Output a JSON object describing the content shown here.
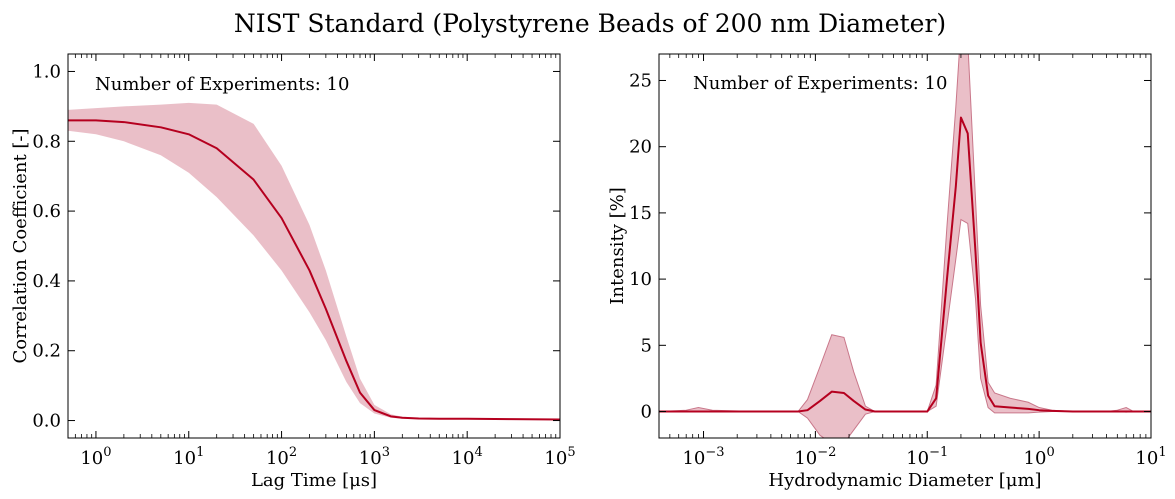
{
  "figure": {
    "title": "NIST Standard (Polystyrene Beads of 200 nm Diameter)"
  },
  "colors": {
    "line": "#b5001f",
    "band": "#e3a9b6",
    "axes": "#000000"
  },
  "chart_data": [
    {
      "type": "line",
      "xscale": "log",
      "xlabel": "Lag Time [μs]",
      "ylabel": "Correlation Coefficient [-]",
      "annotation": "Number of Experiments: 10",
      "xlim": [
        0.5,
        100000
      ],
      "ylim": [
        -0.05,
        1.05
      ],
      "xticks": [
        {
          "value": 1,
          "base": "10",
          "exp": "0"
        },
        {
          "value": 10,
          "base": "10",
          "exp": "1"
        },
        {
          "value": 100,
          "base": "10",
          "exp": "2"
        },
        {
          "value": 1000,
          "base": "10",
          "exp": "3"
        },
        {
          "value": 10000,
          "base": "10",
          "exp": "4"
        },
        {
          "value": 100000,
          "base": "10",
          "exp": "5"
        }
      ],
      "yticks": [
        {
          "value": 0.0,
          "label": "0.0"
        },
        {
          "value": 0.2,
          "label": "0.2"
        },
        {
          "value": 0.4,
          "label": "0.4"
        },
        {
          "value": 0.6,
          "label": "0.6"
        },
        {
          "value": 0.8,
          "label": "0.8"
        },
        {
          "value": 1.0,
          "label": "1.0"
        }
      ],
      "series": [
        {
          "x": [
            0.5,
            1,
            2,
            5,
            10,
            20,
            50,
            100,
            200,
            300,
            500,
            700,
            1000,
            1500,
            2000,
            3000,
            5000,
            10000,
            30000,
            100000
          ],
          "mean": [
            0.86,
            0.86,
            0.855,
            0.84,
            0.82,
            0.78,
            0.69,
            0.58,
            0.43,
            0.32,
            0.17,
            0.08,
            0.03,
            0.012,
            0.008,
            0.006,
            0.005,
            0.005,
            0.004,
            0.003
          ],
          "lower": [
            0.83,
            0.82,
            0.8,
            0.76,
            0.71,
            0.64,
            0.53,
            0.43,
            0.31,
            0.23,
            0.11,
            0.05,
            0.02,
            0.008,
            0.005,
            0.004,
            0.003,
            0.003,
            0.002,
            0.001
          ],
          "upper": [
            0.89,
            0.895,
            0.9,
            0.905,
            0.91,
            0.905,
            0.85,
            0.73,
            0.56,
            0.43,
            0.24,
            0.12,
            0.045,
            0.018,
            0.011,
            0.008,
            0.007,
            0.007,
            0.006,
            0.005
          ]
        }
      ]
    },
    {
      "type": "line",
      "xscale": "log",
      "xlabel": "Hydrodynamic Diameter [μm]",
      "ylabel": "Intensity [%]",
      "annotation": "Number of Experiments: 10",
      "xlim": [
        0.0004,
        10
      ],
      "ylim": [
        -2,
        27
      ],
      "xticks": [
        {
          "value": 0.001,
          "base": "10",
          "exp": "−3"
        },
        {
          "value": 0.01,
          "base": "10",
          "exp": "−2"
        },
        {
          "value": 0.1,
          "base": "10",
          "exp": "−1"
        },
        {
          "value": 1,
          "base": "10",
          "exp": "0"
        },
        {
          "value": 10,
          "base": "10",
          "exp": "1"
        }
      ],
      "yticks": [
        {
          "value": 0,
          "label": "0"
        },
        {
          "value": 5,
          "label": "5"
        },
        {
          "value": 10,
          "label": "10"
        },
        {
          "value": 15,
          "label": "15"
        },
        {
          "value": 20,
          "label": "20"
        },
        {
          "value": 25,
          "label": "25"
        }
      ],
      "series": [
        {
          "x": [
            0.0004,
            0.0007,
            0.0009,
            0.0012,
            0.003,
            0.007,
            0.0085,
            0.011,
            0.014,
            0.018,
            0.022,
            0.028,
            0.034,
            0.06,
            0.1,
            0.12,
            0.15,
            0.18,
            0.2,
            0.23,
            0.27,
            0.3,
            0.35,
            0.4,
            0.55,
            0.8,
            1.0,
            1.3,
            2,
            4,
            5,
            6,
            7,
            10
          ],
          "mean": [
            0,
            0,
            0,
            0,
            0,
            0,
            0.1,
            0.8,
            1.5,
            1.4,
            0.8,
            0.15,
            0,
            0,
            0,
            1.0,
            10,
            17,
            22.2,
            21,
            12,
            5.2,
            1.2,
            0.4,
            0.3,
            0.2,
            0.1,
            0.05,
            0,
            0,
            0,
            0,
            0,
            0
          ],
          "lower": [
            0,
            0,
            0,
            0,
            0,
            0,
            -0.5,
            -1.8,
            -2.4,
            -2.4,
            -1.4,
            -0.2,
            0,
            0,
            0,
            0.4,
            6.5,
            11.5,
            14.5,
            14.2,
            8.5,
            2.5,
            0.3,
            -0.1,
            -0.1,
            -0.1,
            -0.05,
            0,
            0,
            0,
            0,
            -0.05,
            0,
            0
          ],
          "upper": [
            0,
            0.1,
            0.3,
            0.1,
            0,
            0,
            0.9,
            3.4,
            5.8,
            5.6,
            3.0,
            0.4,
            0,
            0,
            0,
            2.0,
            14,
            23,
            29,
            28,
            16,
            8.0,
            2.2,
            1.4,
            1.0,
            0.7,
            0.3,
            0.1,
            0,
            0,
            0.1,
            0.3,
            0,
            0
          ]
        }
      ]
    }
  ]
}
